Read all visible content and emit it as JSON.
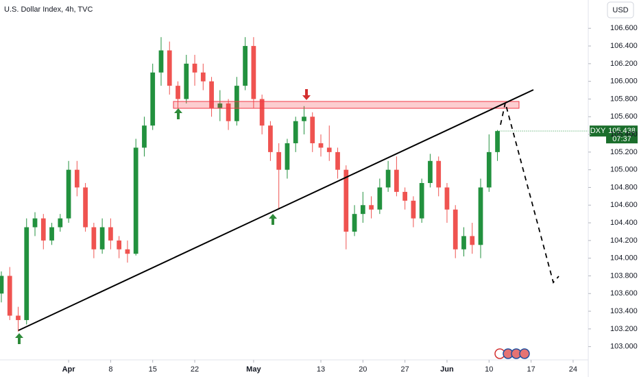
{
  "chart_data": {
    "type": "candlestick",
    "title": "U.S. Dollar Index, 4h, TVC",
    "currency": "USD",
    "symbol": "DXY",
    "last_price": 105.438,
    "countdown": "07:37",
    "up_color": "#22913e",
    "down_color": "#ef5350",
    "x": [
      -8,
      -7,
      -6,
      -5,
      -4,
      -3,
      -2,
      -1,
      0,
      1,
      2,
      3,
      4,
      5,
      6,
      7,
      8,
      9,
      10,
      11,
      12,
      13,
      14,
      15,
      16,
      17,
      18,
      19,
      20,
      21,
      22,
      23,
      24,
      25,
      26,
      27,
      28,
      29,
      30,
      31,
      32,
      33,
      34,
      35,
      36,
      37,
      38,
      39,
      40,
      41,
      42,
      43,
      44,
      45,
      46,
      47,
      48,
      49,
      50,
      51
    ],
    "open": [
      103.6,
      103.8,
      103.35,
      103.3,
      104.35,
      104.45,
      104.2,
      104.35,
      104.45,
      105.0,
      104.8,
      104.35,
      104.1,
      104.35,
      104.2,
      104.1,
      104.05,
      105.25,
      105.5,
      106.1,
      106.35,
      105.95,
      105.8,
      106.2,
      106.1,
      106.0,
      105.7,
      105.75,
      105.55,
      105.95,
      106.4,
      105.8,
      105.5,
      105.2,
      105.0,
      105.3,
      105.55,
      105.6,
      105.3,
      105.25,
      105.2,
      105.0,
      104.3,
      104.5,
      104.6,
      104.55,
      104.8,
      105.0,
      104.75,
      104.65,
      104.45,
      104.85,
      105.1,
      104.8,
      104.55,
      104.1,
      104.25,
      104.15,
      104.8,
      105.2
    ],
    "high": [
      103.85,
      103.9,
      103.45,
      104.45,
      104.52,
      104.5,
      104.4,
      104.5,
      105.1,
      105.1,
      104.85,
      104.4,
      104.45,
      104.45,
      104.25,
      104.2,
      105.35,
      105.6,
      106.2,
      106.5,
      106.45,
      106.0,
      106.3,
      106.3,
      106.2,
      106.05,
      105.9,
      105.8,
      106.05,
      106.5,
      106.5,
      105.85,
      105.55,
      105.3,
      105.35,
      105.6,
      105.72,
      105.65,
      105.4,
      105.5,
      105.25,
      105.05,
      104.6,
      104.75,
      104.7,
      104.9,
      105.1,
      105.15,
      104.8,
      104.7,
      104.9,
      105.18,
      105.15,
      104.85,
      104.6,
      104.35,
      104.4,
      104.9,
      105.4,
      105.45
    ],
    "low": [
      103.5,
      103.3,
      103.17,
      103.25,
      104.25,
      104.1,
      104.15,
      104.3,
      104.4,
      104.7,
      104.3,
      104.0,
      104.05,
      104.1,
      104.0,
      103.95,
      104.03,
      105.15,
      105.45,
      105.95,
      105.85,
      105.7,
      105.75,
      105.95,
      105.9,
      105.6,
      105.55,
      105.45,
      105.5,
      105.9,
      105.7,
      105.4,
      105.1,
      104.55,
      104.9,
      105.2,
      105.4,
      105.2,
      105.15,
      105.1,
      104.9,
      104.1,
      104.25,
      104.4,
      104.45,
      104.5,
      104.75,
      104.7,
      104.55,
      104.35,
      104.4,
      104.8,
      104.7,
      104.4,
      104.0,
      104.02,
      104.05,
      104.0,
      104.75,
      105.1
    ],
    "close": [
      103.8,
      103.35,
      103.3,
      104.35,
      104.45,
      104.2,
      104.35,
      104.45,
      105.0,
      104.8,
      104.35,
      104.1,
      104.35,
      104.2,
      104.1,
      104.05,
      105.25,
      105.5,
      106.1,
      106.35,
      105.95,
      105.8,
      106.2,
      106.1,
      106.0,
      105.7,
      105.75,
      105.55,
      105.95,
      106.4,
      105.8,
      105.5,
      105.2,
      105.0,
      105.3,
      105.55,
      105.6,
      105.3,
      105.25,
      105.2,
      105.0,
      104.3,
      104.5,
      104.6,
      104.55,
      104.8,
      105.0,
      104.75,
      104.65,
      104.45,
      104.85,
      105.1,
      104.8,
      104.55,
      104.1,
      104.25,
      104.15,
      104.8,
      105.2,
      105.438
    ],
    "xlim": [
      -8.16,
      61.8
    ],
    "xticks": [
      {
        "value": 0,
        "label": "Apr"
      },
      {
        "value": 5,
        "label": "8"
      },
      {
        "value": 10,
        "label": "15"
      },
      {
        "value": 15,
        "label": "22"
      },
      {
        "value": 22,
        "label": "May"
      },
      {
        "value": 30,
        "label": "13"
      },
      {
        "value": 35,
        "label": "20"
      },
      {
        "value": 40,
        "label": "27"
      },
      {
        "value": 45,
        "label": "Jun"
      },
      {
        "value": 50,
        "label": "10"
      },
      {
        "value": 55,
        "label": "17"
      },
      {
        "value": 60,
        "label": "24"
      }
    ],
    "ylim": [
      102.85,
      106.92
    ],
    "yticks": [
      {
        "value": 103.0,
        "label": "103.000"
      },
      {
        "value": 103.2,
        "label": "103.200"
      },
      {
        "value": 103.4,
        "label": "103.400"
      },
      {
        "value": 103.6,
        "label": "103.600"
      },
      {
        "value": 103.8,
        "label": "103.800"
      },
      {
        "value": 104.0,
        "label": "104.000"
      },
      {
        "value": 104.2,
        "label": "104.200"
      },
      {
        "value": 104.4,
        "label": "104.400"
      },
      {
        "value": 104.6,
        "label": "104.600"
      },
      {
        "value": 104.8,
        "label": "104.800"
      },
      {
        "value": 105.0,
        "label": "105.000"
      },
      {
        "value": 105.2,
        "label": "105.200"
      },
      {
        "value": 105.4,
        "label": "105.400"
      },
      {
        "value": 105.6,
        "label": "105.600"
      },
      {
        "value": 105.8,
        "label": "105.800"
      },
      {
        "value": 106.0,
        "label": "106.000"
      },
      {
        "value": 106.2,
        "label": "106.200"
      },
      {
        "value": 106.4,
        "label": "106.400"
      },
      {
        "value": 106.6,
        "label": "106.600"
      }
    ]
  }
}
